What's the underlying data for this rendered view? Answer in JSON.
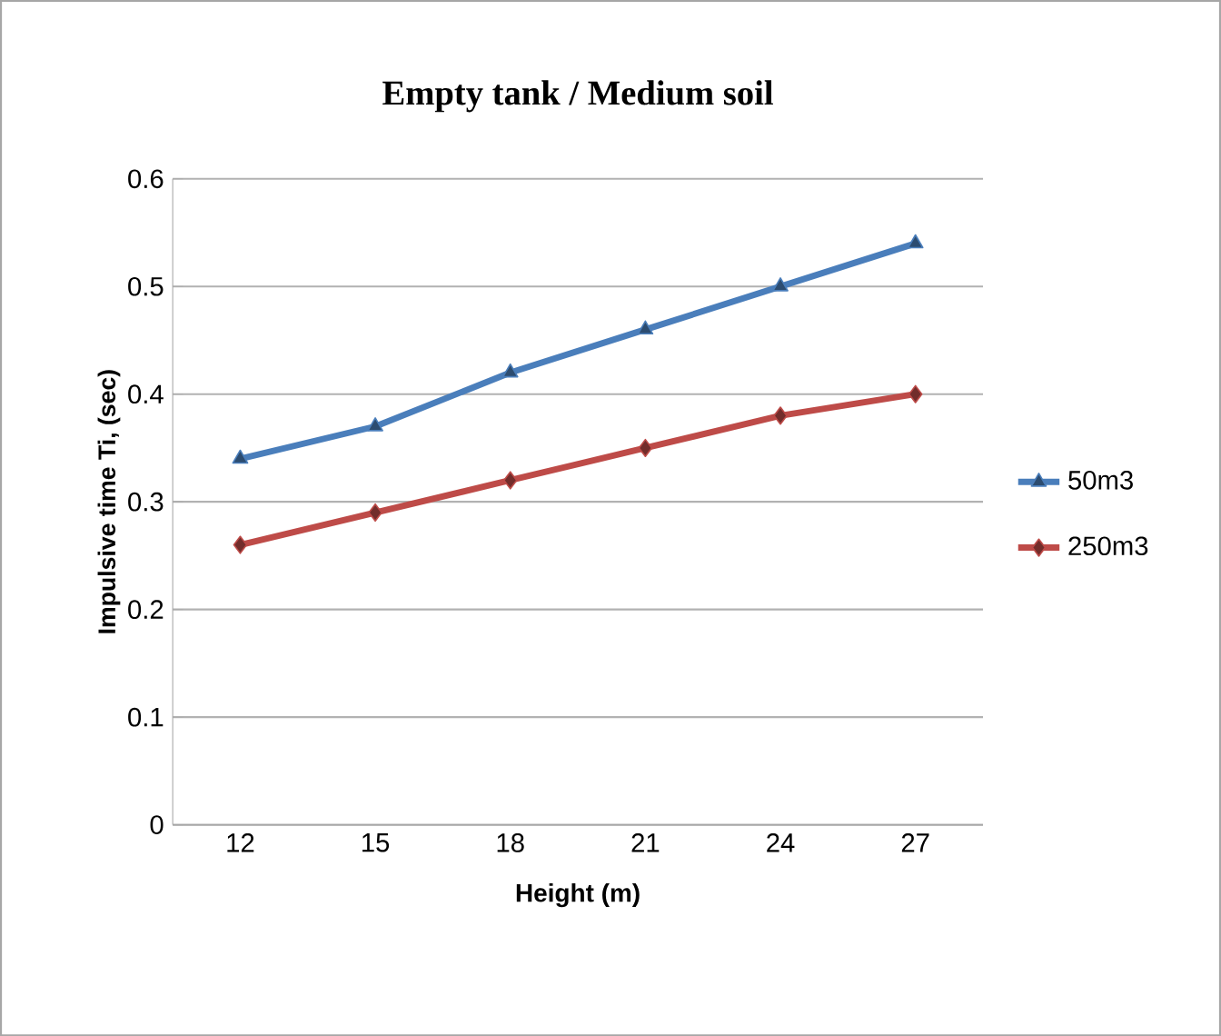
{
  "chart_data": {
    "type": "line",
    "title": "Empty tank / Medium soil",
    "xlabel": "Height (m)",
    "ylabel": "Impulsive time Ti, (sec)",
    "categories": [
      "12",
      "15",
      "18",
      "21",
      "24",
      "27"
    ],
    "series": [
      {
        "name": "50m3",
        "color": "#4a7ebb",
        "marker": "triangle",
        "values": [
          0.34,
          0.37,
          0.42,
          0.46,
          0.5,
          0.54
        ]
      },
      {
        "name": "250m3",
        "color": "#be4b48",
        "marker": "diamond",
        "values": [
          0.26,
          0.29,
          0.32,
          0.35,
          0.38,
          0.4
        ]
      }
    ],
    "ylim": [
      0,
      0.6
    ],
    "yticks": [
      0,
      0.1,
      0.2,
      0.3,
      0.4,
      0.5,
      0.6
    ],
    "grid": "y",
    "legend": "right",
    "line_style": "solid"
  }
}
